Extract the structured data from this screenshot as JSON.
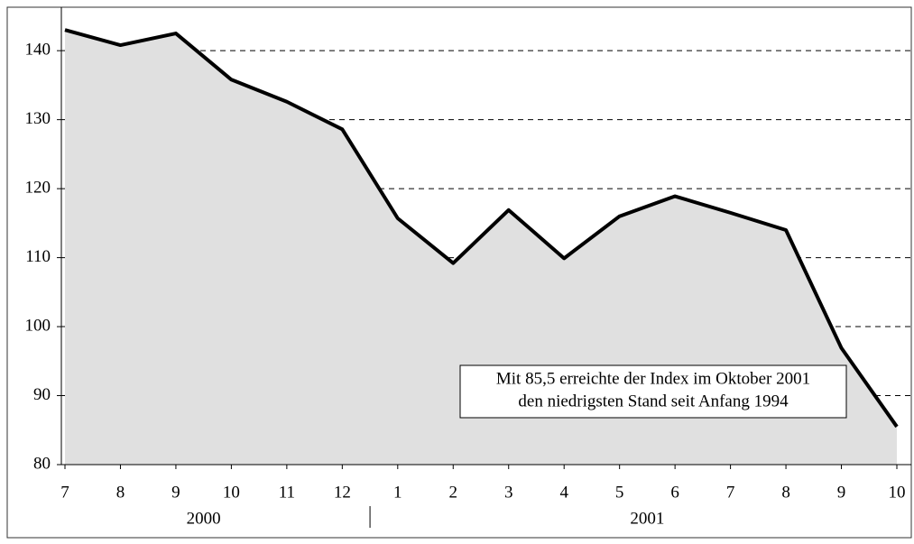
{
  "chart_data": {
    "type": "area",
    "categories": [
      "7",
      "8",
      "9",
      "10",
      "11",
      "12",
      "1",
      "2",
      "3",
      "4",
      "5",
      "6",
      "7",
      "8",
      "9",
      "10"
    ],
    "groups": [
      {
        "label": "2000",
        "count": 6
      },
      {
        "label": "2001",
        "count": 10
      }
    ],
    "values": [
      143.0,
      140.8,
      142.5,
      135.8,
      132.6,
      128.6,
      115.7,
      109.2,
      116.9,
      109.9,
      116.0,
      118.9,
      116.5,
      114.0,
      96.9,
      85.5
    ],
    "color": "#000000",
    "fill": "#e0e0e0",
    "ylim": [
      80,
      146.3
    ],
    "yticks": [
      80,
      90,
      100,
      110,
      120,
      130,
      140
    ],
    "grid": true,
    "annotation": [
      "Mit 85,5 erreichte der Index im Oktober 2001",
      "den niedrigsten Stand seit Anfang 1994"
    ]
  }
}
